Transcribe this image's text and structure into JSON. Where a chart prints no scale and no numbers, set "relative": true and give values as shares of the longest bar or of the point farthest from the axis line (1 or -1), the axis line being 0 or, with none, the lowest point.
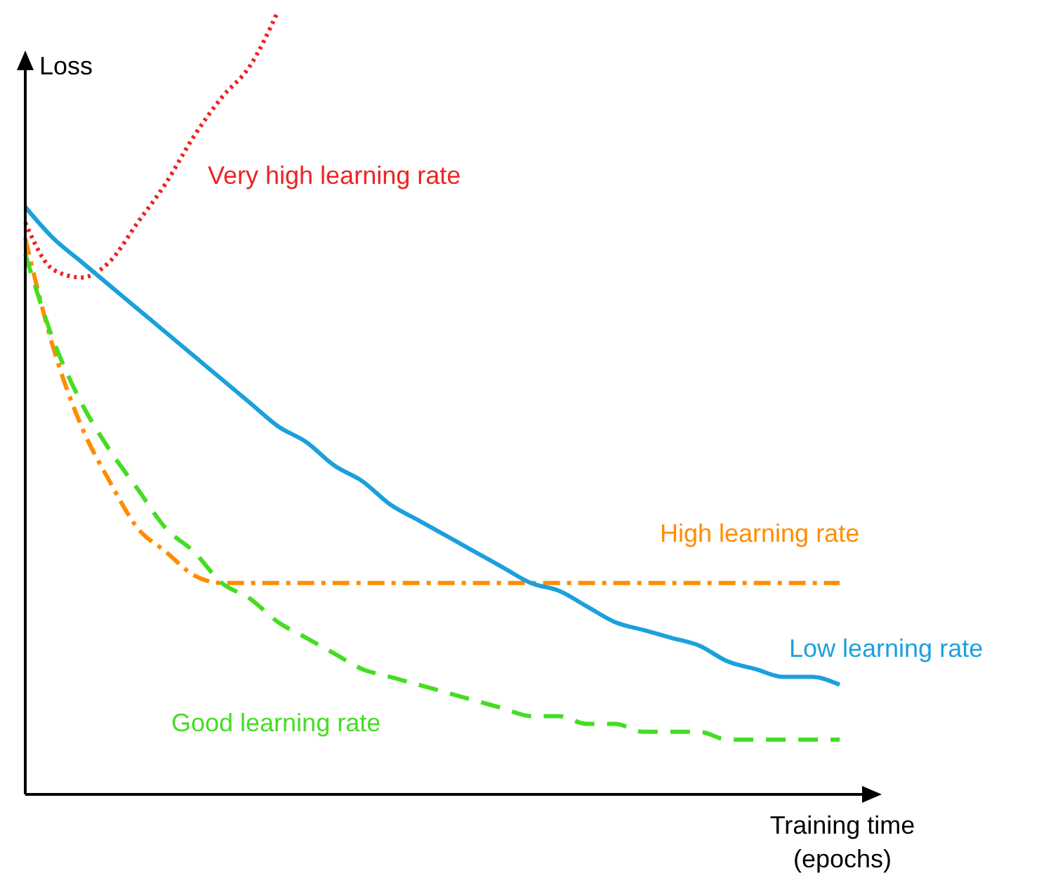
{
  "chart_data": {
    "type": "line",
    "relative": true,
    "xlabel": "Training time (epochs)",
    "ylabel": "Loss",
    "marker": "none",
    "categories": [
      null,
      null,
      null,
      null,
      null,
      null,
      null,
      null,
      null,
      null,
      null,
      null,
      null,
      null,
      null,
      null,
      null,
      null,
      null,
      null,
      null,
      null,
      null,
      null,
      null,
      null,
      null,
      null,
      null,
      null
    ],
    "series": [
      {
        "name": "Very high learning rate",
        "color": "#ee2222",
        "line_style": "dotted",
        "values": [
          0.73,
          0.67,
          0.66,
          0.68,
          0.73,
          0.78,
          0.84,
          0.89,
          0.93,
          1,
          null,
          null,
          null,
          null,
          null,
          null,
          null,
          null,
          null,
          null,
          null,
          null,
          null,
          null,
          null,
          null,
          null,
          null,
          null,
          null
        ]
      },
      {
        "name": "High learning rate",
        "color": "#ff8c00",
        "line_style": "dashdot",
        "values": [
          0.71,
          0.57,
          0.47,
          0.4,
          0.34,
          0.31,
          0.28,
          0.27,
          0.27,
          0.27,
          0.27,
          0.27,
          0.27,
          0.27,
          0.27,
          0.27,
          0.27,
          0.27,
          0.27,
          0.27,
          0.27,
          0.27,
          0.27,
          0.27,
          0.27,
          0.27,
          0.27,
          0.27,
          0.27,
          0.27
        ]
      },
      {
        "name": "Low learning rate",
        "color": "#1ca0dc",
        "line_style": "solid",
        "values": [
          0.75,
          0.71,
          0.68,
          0.65,
          0.62,
          0.59,
          0.56,
          0.53,
          0.5,
          0.47,
          0.45,
          0.42,
          0.4,
          0.37,
          0.35,
          0.33,
          0.31,
          0.29,
          0.27,
          0.26,
          0.24,
          0.22,
          0.21,
          0.2,
          0.19,
          0.17,
          0.16,
          0.15,
          0.15,
          0.14
        ]
      },
      {
        "name": "Good learning rate",
        "color": "#44dd22",
        "line_style": "dashed",
        "values": [
          0.69,
          0.58,
          0.5,
          0.44,
          0.39,
          0.34,
          0.31,
          0.27,
          0.25,
          0.22,
          0.2,
          0.18,
          0.16,
          0.15,
          0.14,
          0.13,
          0.12,
          0.11,
          0.1,
          0.1,
          0.09,
          0.09,
          0.08,
          0.08,
          0.08,
          0.07,
          0.07,
          0.07,
          0.07,
          0.07
        ]
      }
    ]
  }
}
